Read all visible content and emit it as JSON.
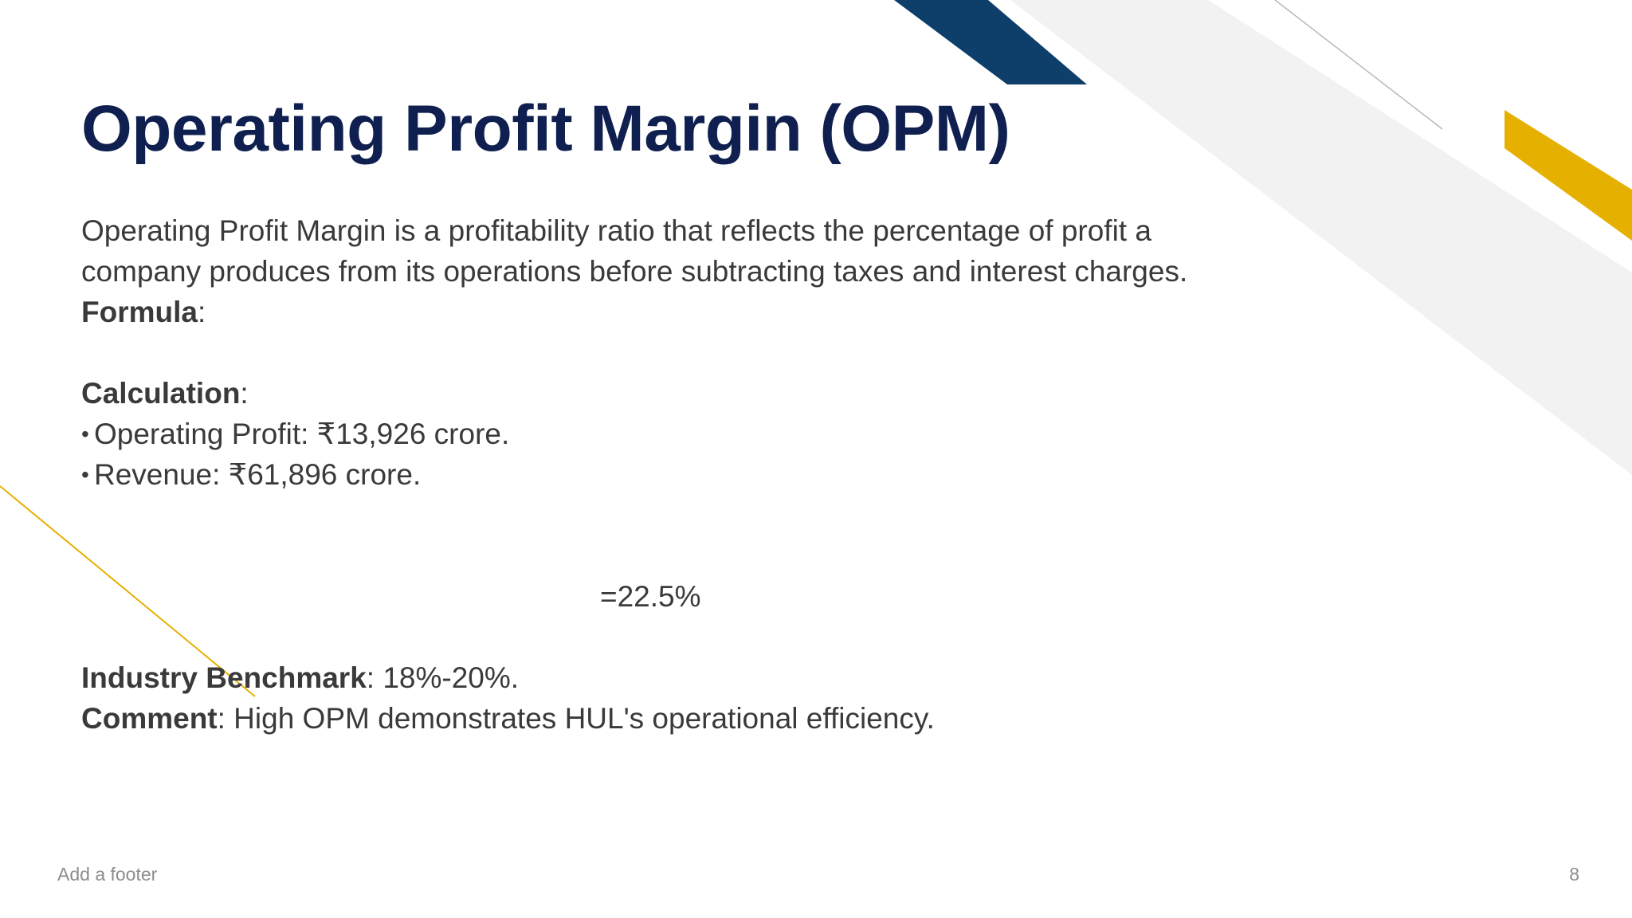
{
  "colors": {
    "title": "#0f1f4f",
    "body_text": "#3a3a3a",
    "navy_accent": "#0e3f6b",
    "gold_accent": "#e6b000",
    "light_gray_band": "#f2f2f2",
    "footer_text": "#8c8c8c"
  },
  "slide": {
    "title": "Operating Profit Margin (OPM)",
    "definition": "Operating Profit Margin is a profitability ratio that reflects the percentage of profit a company produces from its operations before subtracting taxes and interest charges.",
    "formula_label": "Formula",
    "formula_colon": ":",
    "calculation_label": "Calculation",
    "calculation_colon": ":",
    "bullet_symbol": "•",
    "bullets": [
      "Operating Profit: ₹13,926 crore.",
      "Revenue: ₹61,896 crore."
    ],
    "result": "=22.5%",
    "benchmark_label": "Industry Benchmark",
    "benchmark_value": ": 18%-20%.",
    "comment_label": "Comment",
    "comment_value": ": High OPM demonstrates HUL's operational efficiency."
  },
  "footer": {
    "text": "Add a footer",
    "page_number": "8"
  }
}
